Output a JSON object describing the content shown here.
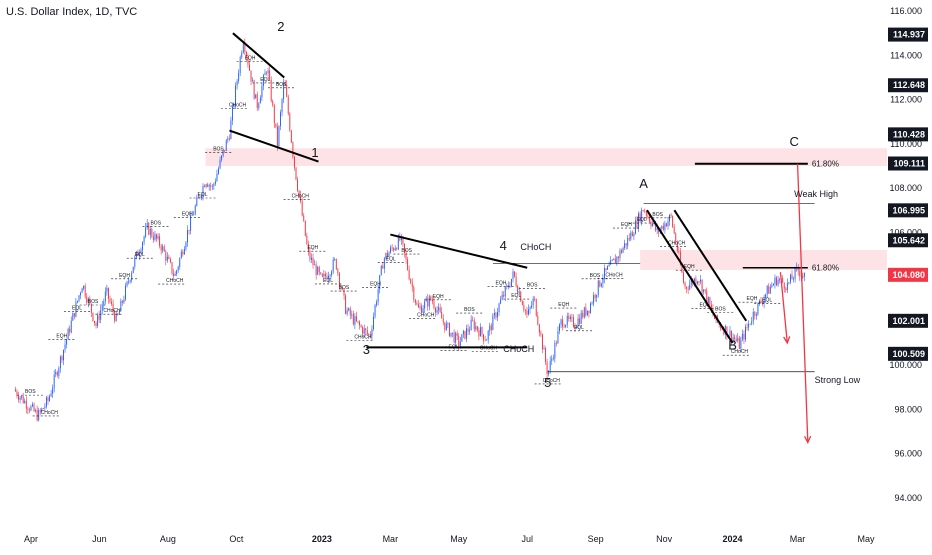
{
  "title": "U.S. Dollar Index, 1D, TVC",
  "chart_data": {
    "type": "candlestick",
    "title": "U.S. Dollar Index, 1D, TVC",
    "ylim": [
      93.0,
      116.5
    ],
    "price_ticks": [
      "94.000",
      "96.000",
      "98.000",
      "100.000",
      "102.000",
      "104.000",
      "106.000",
      "108.000",
      "110.000",
      "112.000",
      "114.000",
      "116.000"
    ],
    "time_ticks": [
      {
        "label": "Apr",
        "t": 0.5
      },
      {
        "label": "Jun",
        "t": 2.5
      },
      {
        "label": "Aug",
        "t": 4.5
      },
      {
        "label": "Oct",
        "t": 6.5
      },
      {
        "label": "2023",
        "t": 9.0
      },
      {
        "label": "Mar",
        "t": 11.0
      },
      {
        "label": "May",
        "t": 13.0
      },
      {
        "label": "Jul",
        "t": 15.0
      },
      {
        "label": "Sep",
        "t": 17.0
      },
      {
        "label": "Nov",
        "t": 19.0
      },
      {
        "label": "2024",
        "t": 21.0
      },
      {
        "label": "Mar",
        "t": 22.9
      },
      {
        "label": "May",
        "t": 24.9
      }
    ],
    "price_tags": [
      {
        "value": 114.937,
        "label": "114.937",
        "color": "#131722"
      },
      {
        "value": 112.648,
        "label": "112.648",
        "color": "#131722"
      },
      {
        "value": 110.428,
        "label": "110.428",
        "color": "#131722"
      },
      {
        "value": 109.111,
        "label": "109.111",
        "color": "#131722"
      },
      {
        "value": 106.995,
        "label": "106.995",
        "color": "#131722"
      },
      {
        "value": 105.642,
        "label": "105.642",
        "color": "#131722"
      },
      {
        "value": 104.08,
        "label": "104.080",
        "color": "#f23645"
      },
      {
        "value": 102.001,
        "label": "102.001",
        "color": "#131722"
      },
      {
        "value": 100.509,
        "label": "100.509",
        "color": "#131722"
      }
    ],
    "path": [
      [
        0.0,
        98.9
      ],
      [
        0.7,
        97.7
      ],
      [
        1.0,
        98.4
      ],
      [
        1.6,
        101.5
      ],
      [
        2.0,
        103.7
      ],
      [
        2.4,
        101.8
      ],
      [
        2.7,
        103.3
      ],
      [
        3.0,
        102.0
      ],
      [
        3.5,
        104.6
      ],
      [
        3.9,
        106.2
      ],
      [
        4.3,
        105.4
      ],
      [
        4.7,
        104.0
      ],
      [
        5.2,
        106.7
      ],
      [
        5.6,
        108.4
      ],
      [
        5.8,
        108.0
      ],
      [
        6.3,
        110.5
      ],
      [
        6.7,
        114.8
      ],
      [
        7.1,
        111.7
      ],
      [
        7.4,
        113.5
      ],
      [
        7.7,
        110.0
      ],
      [
        7.9,
        112.9
      ],
      [
        8.2,
        109.0
      ],
      [
        8.6,
        105.0
      ],
      [
        9.0,
        103.8
      ],
      [
        9.4,
        104.7
      ],
      [
        9.7,
        102.5
      ],
      [
        10.0,
        101.9
      ],
      [
        10.4,
        101.3
      ],
      [
        10.8,
        104.8
      ],
      [
        11.3,
        105.7
      ],
      [
        11.8,
        102.5
      ],
      [
        12.2,
        103.0
      ],
      [
        12.6,
        101.8
      ],
      [
        13.0,
        101.0
      ],
      [
        13.4,
        101.9
      ],
      [
        13.8,
        101.2
      ],
      [
        14.2,
        102.8
      ],
      [
        14.6,
        104.1
      ],
      [
        15.0,
        102.2
      ],
      [
        15.2,
        103.0
      ],
      [
        15.6,
        99.6
      ],
      [
        16.0,
        102.0
      ],
      [
        16.4,
        101.9
      ],
      [
        16.8,
        102.6
      ],
      [
        17.2,
        104.0
      ],
      [
        17.6,
        104.8
      ],
      [
        18.0,
        105.8
      ],
      [
        18.4,
        107.1
      ],
      [
        18.8,
        106.0
      ],
      [
        19.2,
        106.7
      ],
      [
        19.6,
        103.5
      ],
      [
        20.0,
        104.0
      ],
      [
        20.5,
        102.0
      ],
      [
        21.0,
        101.3
      ],
      [
        21.2,
        100.9
      ],
      [
        21.6,
        102.3
      ],
      [
        22.0,
        103.3
      ],
      [
        22.3,
        103.9
      ],
      [
        22.6,
        103.6
      ],
      [
        22.9,
        104.3
      ],
      [
        23.1,
        104.0
      ]
    ],
    "zones": [
      {
        "from": 109.0,
        "to": 109.8,
        "start_t": 5.6
      },
      {
        "from": 104.3,
        "to": 105.2,
        "start_t": 18.3
      }
    ],
    "waves": [
      {
        "label": "1",
        "t": 8.8,
        "v": 109.4
      },
      {
        "label": "2",
        "t": 7.8,
        "v": 115.1
      },
      {
        "label": "3",
        "t": 10.3,
        "v": 100.5
      },
      {
        "label": "4",
        "t": 14.3,
        "v": 105.2
      },
      {
        "label": "5",
        "t": 15.6,
        "v": 99.0
      },
      {
        "label": "A",
        "t": 18.4,
        "v": 108.0
      },
      {
        "label": "B",
        "t": 21.0,
        "v": 100.7
      },
      {
        "label": "C",
        "t": 22.8,
        "v": 109.9
      }
    ],
    "fib_levels": [
      {
        "label": "61.80%",
        "v": 109.1,
        "t1": 19.9,
        "t2": 23.2
      },
      {
        "label": "61.80%",
        "v": 104.4,
        "t1": 21.3,
        "t2": 23.2
      }
    ],
    "line_labels": [
      {
        "text": "CHoCH",
        "t": 14.8,
        "v": 105.2
      },
      {
        "text": "CHoCH",
        "t": 14.3,
        "v": 100.6
      },
      {
        "text": "Weak High",
        "t": 22.8,
        "v": 107.6
      },
      {
        "text": "Strong Low",
        "t": 23.4,
        "v": 99.2
      }
    ],
    "structure_labels": [
      "BOS",
      "CHoCH",
      "EQH",
      "EQL"
    ]
  }
}
